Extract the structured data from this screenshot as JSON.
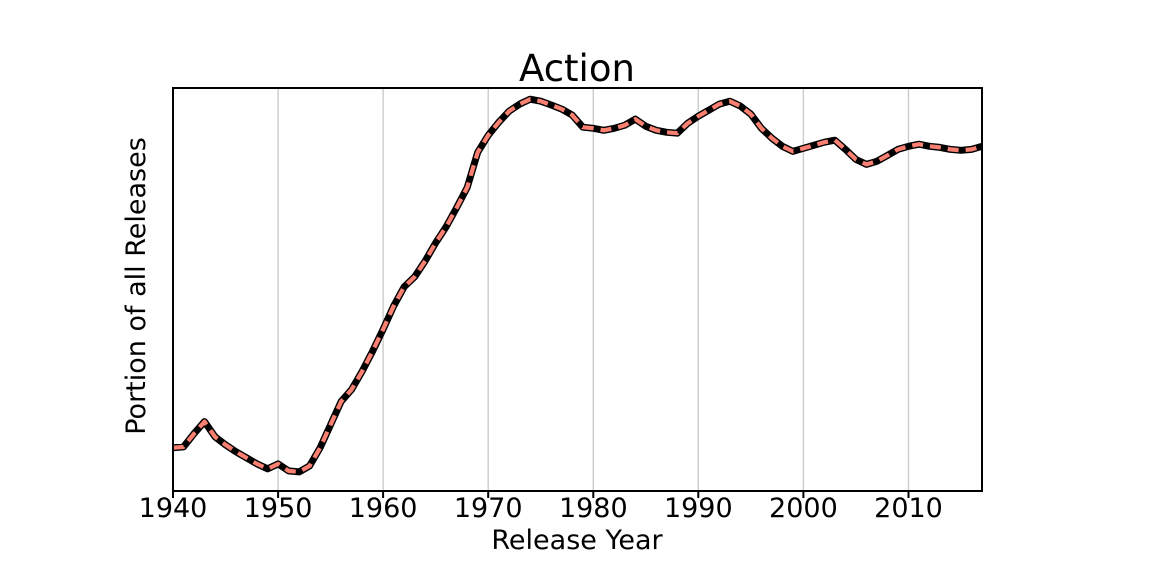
{
  "chart_data": {
    "type": "line",
    "title": "Action",
    "xlabel": "Release Year",
    "ylabel": "Portion of all Releases",
    "xlim": [
      1940,
      2017
    ],
    "ylim": [
      0,
      0.22
    ],
    "xticks": [
      1940,
      1950,
      1960,
      1970,
      1980,
      1990,
      2000,
      2010
    ],
    "xtick_labels": [
      "1940",
      "1950",
      "1960",
      "1970",
      "1980",
      "1990",
      "2000",
      "2010"
    ],
    "ytick_labels": [],
    "grid": "vertical-only",
    "legend": "none",
    "line_color": "#FA8072",
    "line_edge_color": "#000000",
    "line_pattern": "salmon dashes over solid black",
    "grid_color": "#cccccc",
    "background_color": "#ffffff",
    "series": [
      {
        "name": "Action",
        "x": [
          1940,
          1941,
          1942,
          1943,
          1944,
          1945,
          1946,
          1947,
          1948,
          1949,
          1950,
          1951,
          1952,
          1953,
          1954,
          1955,
          1956,
          1957,
          1958,
          1959,
          1960,
          1961,
          1962,
          1963,
          1964,
          1965,
          1966,
          1967,
          1968,
          1969,
          1970,
          1971,
          1972,
          1973,
          1974,
          1975,
          1976,
          1977,
          1978,
          1979,
          1980,
          1981,
          1982,
          1983,
          1984,
          1985,
          1986,
          1987,
          1988,
          1989,
          1990,
          1991,
          1992,
          1993,
          1994,
          1995,
          1996,
          1997,
          1998,
          1999,
          2000,
          2001,
          2002,
          2003,
          2004,
          2005,
          2006,
          2007,
          2008,
          2009,
          2010,
          2011,
          2012,
          2013,
          2014,
          2015,
          2016,
          2017
        ],
        "y": [
          0.0236,
          0.0241,
          0.0313,
          0.0379,
          0.0296,
          0.0252,
          0.0214,
          0.0181,
          0.0148,
          0.0121,
          0.0148,
          0.011,
          0.0104,
          0.0137,
          0.0236,
          0.0362,
          0.0488,
          0.0554,
          0.0653,
          0.0763,
          0.0883,
          0.1009,
          0.1114,
          0.1169,
          0.1256,
          0.1355,
          0.1443,
          0.1547,
          0.1657,
          0.1849,
          0.1942,
          0.2013,
          0.2074,
          0.2112,
          0.2139,
          0.2128,
          0.2107,
          0.2085,
          0.2052,
          0.1986,
          0.198,
          0.1969,
          0.198,
          0.1997,
          0.203,
          0.1991,
          0.1969,
          0.1958,
          0.1953,
          0.2008,
          0.2046,
          0.2079,
          0.2112,
          0.2128,
          0.2101,
          0.2057,
          0.198,
          0.1926,
          0.1882,
          0.1854,
          0.1871,
          0.1887,
          0.1904,
          0.1915,
          0.1865,
          0.181,
          0.1783,
          0.18,
          0.1832,
          0.1865,
          0.1882,
          0.1893,
          0.1882,
          0.1876,
          0.1865,
          0.186,
          0.1865,
          0.1882
        ]
      }
    ]
  }
}
